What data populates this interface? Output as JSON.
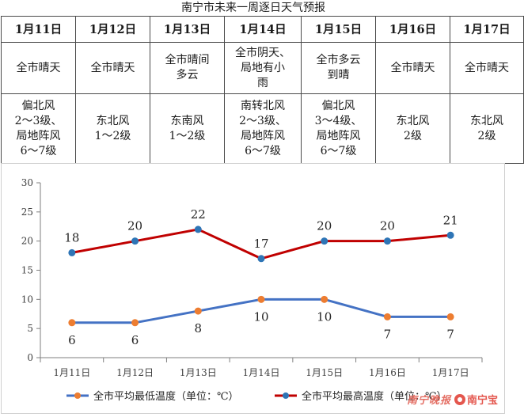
{
  "title": "南宁市未来一周逐日天气预报",
  "forecast": [
    {
      "date": "1月11日",
      "weather": [
        "全市晴天"
      ],
      "wind": [
        "偏北风",
        "2～3级、",
        "局地阵风",
        "6～7级"
      ]
    },
    {
      "date": "1月12日",
      "weather": [
        "全市晴天"
      ],
      "wind": [
        "东北风",
        "1～2级"
      ]
    },
    {
      "date": "1月13日",
      "weather": [
        "全市晴间",
        "多云"
      ],
      "wind": [
        "东南风",
        "1～2级"
      ]
    },
    {
      "date": "1月14日",
      "weather": [
        "全市阴天、",
        "局地有小",
        "雨"
      ],
      "wind": [
        "南转北风",
        "2～3级、",
        "局地阵风",
        "6～7级"
      ]
    },
    {
      "date": "1月15日",
      "weather": [
        "全市多云",
        "到晴"
      ],
      "wind": [
        "偏北风",
        "3～4级、",
        "局地阵风",
        "6～7级"
      ]
    },
    {
      "date": "1月16日",
      "weather": [
        "全市晴天"
      ],
      "wind": [
        "东北风",
        "2级"
      ]
    },
    {
      "date": "1月17日",
      "weather": [
        "全市晴天"
      ],
      "wind": [
        "东北风",
        "2级"
      ]
    }
  ],
  "chart_data": {
    "type": "line",
    "x": [
      "1月11日",
      "1月12日",
      "1月13日",
      "1月14日",
      "1月15日",
      "1月16日",
      "1月17日"
    ],
    "series": [
      {
        "name": "全市平均最低温度（单位：℃）",
        "values": [
          6,
          6,
          8,
          10,
          10,
          7,
          7
        ],
        "color": "#4472c4",
        "marker_color": "#ed7d31"
      },
      {
        "name": "全市平均最高温度（单位：℃）",
        "values": [
          18,
          20,
          22,
          17,
          20,
          20,
          21
        ],
        "color": "#c00000",
        "marker_color": "#2e75b6"
      }
    ],
    "ylim": [
      0,
      30
    ],
    "yticks": [
      0,
      5,
      10,
      15,
      20,
      25,
      30
    ],
    "grid": false,
    "legend": "bottom"
  },
  "watermark": {
    "script_text": "南宁晚报",
    "logo_text": "南宁宝"
  }
}
